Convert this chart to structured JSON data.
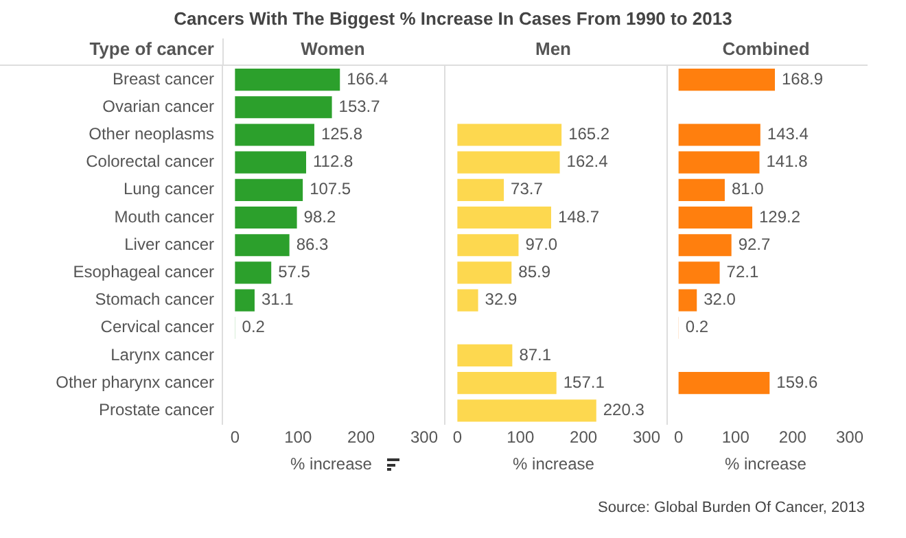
{
  "chart_data": [
    {
      "type": "bar",
      "orientation": "horizontal",
      "title": "Cancers With The Biggest % Increase In Cases From 1990 to 2013",
      "subtitle": "Women",
      "ylabel": "Type of cancer",
      "xlabel": "% increase",
      "categories": [
        "Breast cancer",
        "Ovarian cancer",
        "Other neoplasms",
        "Colorectal cancer",
        "Lung cancer",
        "Mouth cancer",
        "Liver cancer",
        "Esophageal cancer",
        "Stomach cancer",
        "Cervical cancer",
        "Larynx cancer",
        "Other pharynx cancer",
        "Prostate cancer"
      ],
      "color": "#2ca02c",
      "values": [
        166.4,
        153.7,
        125.8,
        112.8,
        107.5,
        98.2,
        86.3,
        57.5,
        31.1,
        0.2,
        null,
        null,
        null
      ],
      "value_labels": [
        "166.4",
        "153.7",
        "125.8",
        "112.8",
        "107.5",
        "98.2",
        "86.3",
        "57.5",
        "31.1",
        "0.2",
        null,
        null,
        null
      ],
      "xlim": [
        -20,
        325
      ],
      "xticks": [
        0,
        100,
        200,
        300
      ]
    },
    {
      "type": "bar",
      "orientation": "horizontal",
      "subtitle": "Men",
      "xlabel": "% increase",
      "categories": [
        null,
        null,
        null,
        null,
        null,
        null,
        null,
        null,
        null,
        null,
        null,
        null,
        null
      ],
      "color": "#fdd84f",
      "values": [
        null,
        null,
        165.2,
        162.4,
        73.7,
        148.7,
        97.0,
        85.9,
        32.9,
        null,
        87.1,
        157.1,
        220.3
      ],
      "value_labels": [
        null,
        null,
        "165.2",
        "162.4",
        "73.7",
        "148.7",
        "97.0",
        "85.9",
        "32.9",
        null,
        "87.1",
        "157.1",
        "220.3"
      ],
      "xlim": [
        -20,
        325
      ],
      "xticks": [
        0,
        100,
        200,
        300
      ],
      "tick_labels": "x"
    },
    {
      "type": "bar",
      "orientation": "horizontal",
      "subtitle": "Combined",
      "xlabel": "% increase",
      "categories": [
        null,
        null,
        null,
        null,
        null,
        null,
        null,
        null,
        null,
        null,
        null,
        null,
        null
      ],
      "color": "#ff7f0e",
      "values": [
        168.9,
        null,
        143.4,
        141.8,
        81.0,
        129.2,
        92.7,
        72.1,
        32.0,
        0.2,
        null,
        159.6,
        null
      ],
      "value_labels": [
        "168.9",
        null,
        "143.4",
        "141.8",
        "81.0",
        "129.2",
        "92.7",
        "72.1",
        "32.0",
        "0.2",
        null,
        "159.6",
        null
      ],
      "xlim": [
        -20,
        325
      ],
      "xticks": [
        0,
        100,
        200,
        300
      ],
      "tick_labels": "x",
      "annotations": [
        "Source: Global Burden Of Cancer, 2013"
      ]
    }
  ]
}
